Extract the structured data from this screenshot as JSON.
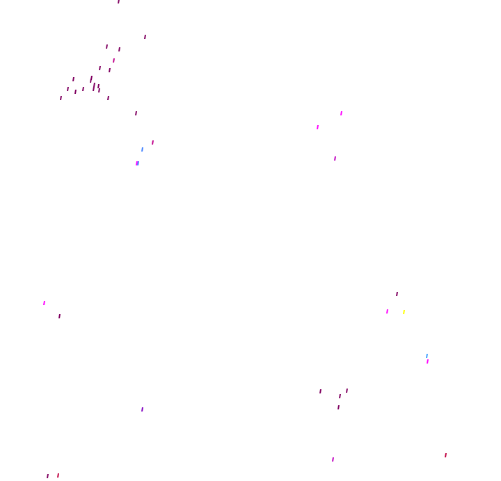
{
  "background_color": "#ffffff",
  "mark_colors": {
    "dark_magenta": "#800060",
    "magenta": "#c0008a",
    "bright_magenta": "#ff00ff",
    "violet": "#c000c0",
    "purple": "#8000c0",
    "blue": "#4080ff",
    "light_blue": "#40a0ff",
    "yellow": "#ffff00",
    "crimson": "#c00040"
  }
}
